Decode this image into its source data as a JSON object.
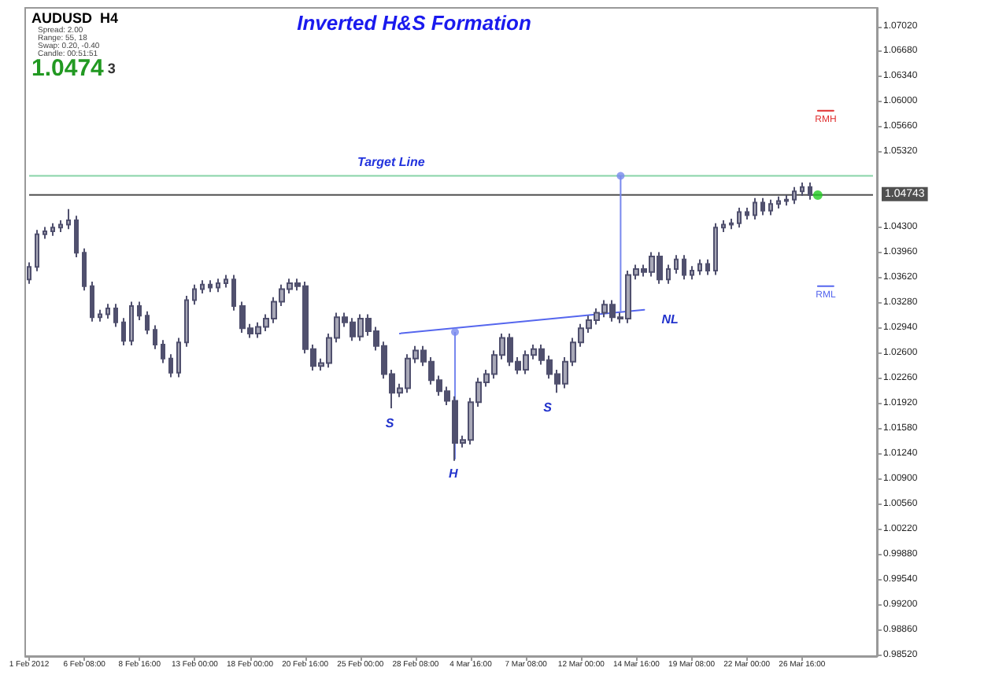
{
  "chart_data": {
    "type": "candlestick",
    "title": "Inverted H&S Formation",
    "categories": [
      "1 Feb 2012",
      null,
      null,
      null,
      null,
      null,
      null,
      "6 Feb 08:00",
      null,
      null,
      null,
      null,
      null,
      null,
      "8 Feb 16:00",
      null,
      null,
      null,
      null,
      null,
      null,
      "13 Feb 00:00",
      null,
      null,
      null,
      null,
      null,
      null,
      "18 Feb 00:00",
      null,
      null,
      null,
      null,
      null,
      null,
      "20 Feb 16:00",
      null,
      null,
      null,
      null,
      null,
      null,
      "25 Feb 00:00",
      null,
      null,
      null,
      null,
      null,
      null,
      "28 Feb 08:00",
      null,
      null,
      null,
      null,
      null,
      null,
      "4 Mar 16:00",
      null,
      null,
      null,
      null,
      null,
      null,
      "7 Mar 08:00",
      null,
      null,
      null,
      null,
      null,
      null,
      "12 Mar 00:00",
      null,
      null,
      null,
      null,
      null,
      null,
      "14 Mar 16:00",
      null,
      null,
      null,
      null,
      null,
      null,
      "19 Mar 08:00",
      null,
      null,
      null,
      null,
      null,
      null,
      "22 Mar 00:00",
      null,
      null,
      null,
      null,
      null,
      null,
      "26 Mar 16:00",
      null,
      null,
      null,
      null,
      null,
      null,
      null,
      null,
      null
    ],
    "ohlc": [
      [
        1.036,
        1.0383,
        1.0354,
        1.0377
      ],
      [
        1.0377,
        1.0427,
        1.0371,
        1.0421
      ],
      [
        1.0421,
        1.0431,
        1.0415,
        1.0425
      ],
      [
        1.0425,
        1.0436,
        1.0419,
        1.043
      ],
      [
        1.043,
        1.044,
        1.0424,
        1.0434
      ],
      [
        1.0434,
        1.0455,
        1.0428,
        1.044
      ],
      [
        1.044,
        1.0446,
        1.039,
        1.0396
      ],
      [
        1.0396,
        1.0402,
        1.0345,
        1.0351
      ],
      [
        1.0351,
        1.0357,
        1.0303,
        1.0309
      ],
      [
        1.0309,
        1.0319,
        1.0303,
        1.0313
      ],
      [
        1.0313,
        1.0327,
        1.0307,
        1.0321
      ],
      [
        1.0321,
        1.0327,
        1.0296,
        1.0302
      ],
      [
        1.0302,
        1.0308,
        1.0271,
        1.0277
      ],
      [
        1.0277,
        1.033,
        1.0271,
        1.0324
      ],
      [
        1.0324,
        1.033,
        1.0305,
        1.0311
      ],
      [
        1.0311,
        1.0317,
        1.0286,
        1.0292
      ],
      [
        1.0292,
        1.0298,
        1.0266,
        1.0272
      ],
      [
        1.0272,
        1.0278,
        1.0247,
        1.0253
      ],
      [
        1.0253,
        1.0259,
        1.0228,
        1.0234
      ],
      [
        1.0234,
        1.0281,
        1.0228,
        1.0275
      ],
      [
        1.0275,
        1.0338,
        1.0269,
        1.0332
      ],
      [
        1.0332,
        1.0353,
        1.0326,
        1.0347
      ],
      [
        1.0347,
        1.0359,
        1.0341,
        1.0353
      ],
      [
        1.0353,
        1.0359,
        1.0343,
        1.0349
      ],
      [
        1.0349,
        1.0361,
        1.0343,
        1.0355
      ],
      [
        1.0355,
        1.0366,
        1.0349,
        1.036
      ],
      [
        1.036,
        1.0366,
        1.0318,
        1.0324
      ],
      [
        1.0324,
        1.033,
        1.0288,
        1.0294
      ],
      [
        1.0294,
        1.03,
        1.0281,
        1.0287
      ],
      [
        1.0287,
        1.0302,
        1.0281,
        1.0296
      ],
      [
        1.0296,
        1.0313,
        1.029,
        1.0307
      ],
      [
        1.0307,
        1.0336,
        1.0301,
        1.033
      ],
      [
        1.033,
        1.0353,
        1.0324,
        1.0347
      ],
      [
        1.0347,
        1.0361,
        1.0341,
        1.0355
      ],
      [
        1.0355,
        1.0361,
        1.0345,
        1.0351
      ],
      [
        1.0351,
        1.0357,
        1.026,
        1.0266
      ],
      [
        1.0266,
        1.0272,
        1.0237,
        1.0243
      ],
      [
        1.0243,
        1.0253,
        1.0237,
        1.0247
      ],
      [
        1.0247,
        1.0287,
        1.0241,
        1.0281
      ],
      [
        1.0281,
        1.0315,
        1.0275,
        1.0309
      ],
      [
        1.0309,
        1.0315,
        1.0296,
        1.0302
      ],
      [
        1.0302,
        1.0308,
        1.0277,
        1.0283
      ],
      [
        1.0283,
        1.0313,
        1.0277,
        1.0307
      ],
      [
        1.0307,
        1.0313,
        1.0284,
        1.029
      ],
      [
        1.029,
        1.0296,
        1.0264,
        1.027
      ],
      [
        1.027,
        1.0276,
        1.0226,
        1.0232
      ],
      [
        1.0232,
        1.0238,
        1.0186,
        1.0207
      ],
      [
        1.0207,
        1.0219,
        1.0201,
        1.0213
      ],
      [
        1.0213,
        1.0259,
        1.0207,
        1.0253
      ],
      [
        1.0253,
        1.027,
        1.0247,
        1.0264
      ],
      [
        1.0264,
        1.027,
        1.0243,
        1.0249
      ],
      [
        1.0249,
        1.0255,
        1.0218,
        1.0224
      ],
      [
        1.0224,
        1.023,
        1.0203,
        1.0209
      ],
      [
        1.0209,
        1.0215,
        1.019,
        1.0196
      ],
      [
        1.0196,
        1.0202,
        1.0115,
        1.0139
      ],
      [
        1.0139,
        1.0149,
        1.0133,
        1.0143
      ],
      [
        1.0143,
        1.02,
        1.0137,
        1.0194
      ],
      [
        1.0194,
        1.0227,
        1.0188,
        1.0221
      ],
      [
        1.0221,
        1.0238,
        1.0215,
        1.0232
      ],
      [
        1.0232,
        1.0264,
        1.0226,
        1.0258
      ],
      [
        1.0258,
        1.0287,
        1.0252,
        1.0281
      ],
      [
        1.0281,
        1.0287,
        1.0243,
        1.0249
      ],
      [
        1.0249,
        1.0255,
        1.0232,
        1.0238
      ],
      [
        1.0238,
        1.0264,
        1.0232,
        1.0258
      ],
      [
        1.0258,
        1.0272,
        1.0252,
        1.0266
      ],
      [
        1.0266,
        1.0272,
        1.0245,
        1.0251
      ],
      [
        1.0251,
        1.0257,
        1.0226,
        1.0232
      ],
      [
        1.0232,
        1.0238,
        1.0207,
        1.0219
      ],
      [
        1.0219,
        1.0255,
        1.0213,
        1.0249
      ],
      [
        1.0249,
        1.0281,
        1.0243,
        1.0275
      ],
      [
        1.0275,
        1.03,
        1.0269,
        1.0294
      ],
      [
        1.0294,
        1.0311,
        1.0288,
        1.0305
      ],
      [
        1.0305,
        1.0321,
        1.0299,
        1.0315
      ],
      [
        1.0315,
        1.0332,
        1.0309,
        1.0326
      ],
      [
        1.0326,
        1.0332,
        1.0303,
        1.0309
      ],
      [
        1.0309,
        1.0315,
        1.0301,
        1.0307
      ],
      [
        1.0307,
        1.0372,
        1.0301,
        1.0366
      ],
      [
        1.0366,
        1.038,
        1.036,
        1.0374
      ],
      [
        1.0374,
        1.038,
        1.0364,
        1.037
      ],
      [
        1.037,
        1.0397,
        1.0364,
        1.0391
      ],
      [
        1.0391,
        1.0397,
        1.0354,
        1.036
      ],
      [
        1.036,
        1.038,
        1.0354,
        1.0374
      ],
      [
        1.0374,
        1.0393,
        1.0368,
        1.0387
      ],
      [
        1.0387,
        1.0393,
        1.036,
        1.0366
      ],
      [
        1.0366,
        1.0378,
        1.036,
        1.0372
      ],
      [
        1.0372,
        1.0387,
        1.0366,
        1.0381
      ],
      [
        1.0381,
        1.0387,
        1.0366,
        1.0372
      ],
      [
        1.0372,
        1.0436,
        1.0366,
        1.043
      ],
      [
        1.043,
        1.044,
        1.0424,
        1.0434
      ],
      [
        1.0434,
        1.0442,
        1.0428,
        1.0436
      ],
      [
        1.0436,
        1.0457,
        1.043,
        1.0451
      ],
      [
        1.0451,
        1.0457,
        1.0441,
        1.0447
      ],
      [
        1.0447,
        1.047,
        1.0441,
        1.0464
      ],
      [
        1.0464,
        1.047,
        1.0447,
        1.0453
      ],
      [
        1.0453,
        1.0468,
        1.0447,
        1.0462
      ],
      [
        1.0462,
        1.0472,
        1.0456,
        1.0466
      ],
      [
        1.0466,
        1.0474,
        1.046,
        1.0468
      ],
      [
        1.0468,
        1.0485,
        1.0462,
        1.0479
      ],
      [
        1.0479,
        1.0491,
        1.0473,
        1.0485
      ],
      [
        1.0485,
        1.0491,
        1.0468,
        1.0474
      ],
      null,
      null,
      null,
      null,
      null,
      null,
      null,
      null
    ],
    "color": "#50506e",
    "series": [
      {
        "type": "line",
        "color": "#5566ee",
        "values": [
          null,
          null,
          null,
          null,
          null,
          null,
          null,
          null,
          null,
          null,
          null,
          null,
          null,
          null,
          null,
          null,
          null,
          null,
          null,
          null,
          null,
          null,
          null,
          null,
          null,
          null,
          null,
          null,
          null,
          null,
          null,
          null,
          null,
          null,
          null,
          null,
          null,
          null,
          null,
          null,
          null,
          null,
          null,
          null,
          null,
          null,
          null,
          1.0287,
          null,
          null,
          null,
          null,
          null,
          null,
          null,
          null,
          null,
          null,
          null,
          null,
          null,
          null,
          null,
          null,
          null,
          null,
          null,
          null,
          null,
          null,
          null,
          null,
          null,
          null,
          null,
          null,
          null,
          null,
          1.0319,
          null,
          null,
          null,
          null,
          null,
          null,
          null,
          null,
          null,
          null,
          null,
          null,
          null,
          null,
          null,
          null,
          null,
          null,
          null,
          null,
          null,
          null,
          null,
          null,
          null,
          null,
          null,
          null,
          null
        ]
      },
      {
        "type": "scatter",
        "marker": "circle",
        "color": "#7788ee",
        "values": [
          null,
          null,
          null,
          null,
          null,
          null,
          null,
          null,
          null,
          null,
          null,
          null,
          null,
          null,
          null,
          null,
          null,
          null,
          null,
          null,
          null,
          null,
          null,
          null,
          null,
          null,
          null,
          null,
          null,
          null,
          null,
          null,
          null,
          null,
          null,
          null,
          null,
          null,
          null,
          null,
          null,
          null,
          null,
          null,
          null,
          null,
          null,
          null,
          null,
          null,
          null,
          null,
          null,
          null,
          1.0289,
          null,
          null,
          null,
          null,
          null,
          null,
          null,
          null,
          null,
          null,
          null,
          null,
          null,
          null,
          null,
          null,
          null,
          null,
          null,
          null,
          1.05,
          null,
          null,
          null,
          null,
          null,
          null,
          null,
          null,
          null,
          null,
          null,
          null,
          null,
          null,
          null,
          null,
          null,
          null,
          null,
          null,
          null,
          null,
          null,
          null,
          null,
          null,
          null,
          null,
          null,
          null,
          null,
          null
        ],
        "errors": [
          null,
          null,
          null,
          null,
          null,
          null,
          null,
          null,
          null,
          null,
          null,
          null,
          null,
          null,
          null,
          null,
          null,
          null,
          null,
          null,
          null,
          null,
          null,
          null,
          null,
          null,
          null,
          null,
          null,
          null,
          null,
          null,
          null,
          null,
          null,
          null,
          null,
          null,
          null,
          null,
          null,
          null,
          null,
          null,
          null,
          null,
          null,
          null,
          null,
          null,
          null,
          null,
          null,
          null,
          [
            1.0117,
            1.0289
          ],
          null,
          null,
          null,
          null,
          null,
          null,
          null,
          null,
          null,
          null,
          null,
          null,
          null,
          null,
          null,
          null,
          null,
          null,
          null,
          null,
          [
            1.0317,
            1.05
          ],
          null,
          null,
          null,
          null,
          null,
          null,
          null,
          null,
          null,
          null,
          null,
          null,
          null,
          null,
          null,
          null,
          null,
          null,
          null,
          null,
          null,
          null,
          null,
          null,
          null,
          null,
          null,
          null,
          null,
          null,
          null,
          null
        ]
      },
      {
        "type": "line",
        "name": "RMH",
        "color": "#e03030",
        "values": [
          null,
          null,
          null,
          null,
          null,
          null,
          null,
          null,
          null,
          null,
          null,
          null,
          null,
          null,
          null,
          null,
          null,
          null,
          null,
          null,
          null,
          null,
          null,
          null,
          null,
          null,
          null,
          null,
          null,
          null,
          null,
          null,
          null,
          null,
          null,
          null,
          null,
          null,
          null,
          null,
          null,
          null,
          null,
          null,
          null,
          null,
          null,
          null,
          null,
          null,
          null,
          null,
          null,
          null,
          null,
          null,
          null,
          null,
          null,
          null,
          null,
          null,
          null,
          null,
          null,
          null,
          null,
          null,
          null,
          null,
          null,
          null,
          null,
          null,
          null,
          null,
          null,
          null,
          null,
          null,
          null,
          null,
          null,
          null,
          null,
          null,
          null,
          null,
          null,
          null,
          null,
          null,
          null,
          null,
          null,
          null,
          null,
          null,
          null,
          null,
          1.0588,
          1.0588,
          1.0588,
          null,
          null,
          null,
          null,
          null
        ]
      },
      {
        "type": "line",
        "name": "RML",
        "color": "#5566ee",
        "values": [
          null,
          null,
          null,
          null,
          null,
          null,
          null,
          null,
          null,
          null,
          null,
          null,
          null,
          null,
          null,
          null,
          null,
          null,
          null,
          null,
          null,
          null,
          null,
          null,
          null,
          null,
          null,
          null,
          null,
          null,
          null,
          null,
          null,
          null,
          null,
          null,
          null,
          null,
          null,
          null,
          null,
          null,
          null,
          null,
          null,
          null,
          null,
          null,
          null,
          null,
          null,
          null,
          null,
          null,
          null,
          null,
          null,
          null,
          null,
          null,
          null,
          null,
          null,
          null,
          null,
          null,
          null,
          null,
          null,
          null,
          null,
          null,
          null,
          null,
          null,
          null,
          null,
          null,
          null,
          null,
          null,
          null,
          null,
          null,
          null,
          null,
          null,
          null,
          null,
          null,
          null,
          null,
          null,
          null,
          null,
          null,
          null,
          null,
          null,
          null,
          1.0351,
          1.0351,
          1.0351,
          null,
          null,
          null,
          null,
          null
        ]
      },
      {
        "type": "scatter",
        "marker": "circle",
        "color": "#22cc22",
        "values": [
          null,
          null,
          null,
          null,
          null,
          null,
          null,
          null,
          null,
          null,
          null,
          null,
          null,
          null,
          null,
          null,
          null,
          null,
          null,
          null,
          null,
          null,
          null,
          null,
          null,
          null,
          null,
          null,
          null,
          null,
          null,
          null,
          null,
          null,
          null,
          null,
          null,
          null,
          null,
          null,
          null,
          null,
          null,
          null,
          null,
          null,
          null,
          null,
          null,
          null,
          null,
          null,
          null,
          null,
          null,
          null,
          null,
          null,
          null,
          null,
          null,
          null,
          null,
          null,
          null,
          null,
          null,
          null,
          null,
          null,
          null,
          null,
          null,
          null,
          null,
          null,
          null,
          null,
          null,
          null,
          null,
          null,
          null,
          null,
          null,
          null,
          null,
          null,
          null,
          null,
          null,
          null,
          null,
          null,
          null,
          null,
          null,
          null,
          null,
          null,
          1.0474,
          null,
          null,
          null,
          null,
          null,
          null,
          null
        ]
      }
    ],
    "ref_lines": [
      {
        "axis": "y",
        "value": 1.05,
        "label": "Target Line",
        "color": "#88d4a8"
      },
      {
        "axis": "y",
        "value": 1.04743,
        "label": "1.04743",
        "color": "#505050"
      }
    ],
    "annotations": [
      "AUDUSD  H4",
      "Spread: 2.00",
      "Range: 55, 18",
      "Swap: 0.20, -0.40",
      "Candle: 00:51:51",
      "1.0474 3",
      "S",
      "H",
      "S",
      "NL"
    ],
    "ylim": [
      0.9851,
      1.0727
    ],
    "yticks": [
      {
        "value": 0.9852,
        "label": "0.98520"
      },
      {
        "value": 0.9886,
        "label": "0.98860"
      },
      {
        "value": 0.992,
        "label": "0.99200"
      },
      {
        "value": 0.9954,
        "label": "0.99540"
      },
      {
        "value": 0.9988,
        "label": "0.99880"
      },
      {
        "value": 1.0022,
        "label": "1.00220"
      },
      {
        "value": 1.0056,
        "label": "1.00560"
      },
      {
        "value": 1.009,
        "label": "1.00900"
      },
      {
        "value": 1.0124,
        "label": "1.01240"
      },
      {
        "value": 1.0158,
        "label": "1.01580"
      },
      {
        "value": 1.0192,
        "label": "1.01920"
      },
      {
        "value": 1.0226,
        "label": "1.02260"
      },
      {
        "value": 1.026,
        "label": "1.02600"
      },
      {
        "value": 1.0294,
        "label": "1.02940"
      },
      {
        "value": 1.0328,
        "label": "1.03280"
      },
      {
        "value": 1.0362,
        "label": "1.03620"
      },
      {
        "value": 1.0396,
        "label": "1.03960"
      },
      {
        "value": 1.043,
        "label": "1.04300"
      },
      {
        "value": 1.0532,
        "label": "1.05320"
      },
      {
        "value": 1.0566,
        "label": "1.05660"
      },
      {
        "value": 1.06,
        "label": "1.06000"
      },
      {
        "value": 1.0634,
        "label": "1.06340"
      },
      {
        "value": 1.0668,
        "label": "1.06680"
      },
      {
        "value": 1.0702,
        "label": "1.07020"
      }
    ],
    "grid": false,
    "legend": false,
    "marker": "none",
    "line_style": "solid"
  }
}
